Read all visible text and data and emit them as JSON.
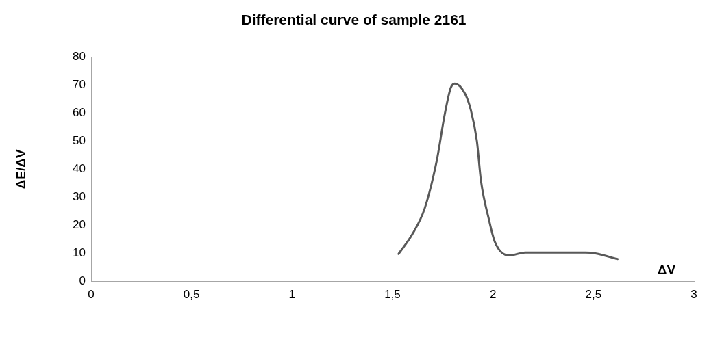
{
  "chart_data": {
    "type": "line",
    "title": "Differential curve of sample 2161",
    "xlabel": "ΔV",
    "ylabel": "ΔE/ΔV",
    "x": [
      1.53,
      1.6,
      1.66,
      1.72,
      1.76,
      1.79,
      1.81,
      1.86,
      1.89,
      1.92,
      1.94,
      1.98,
      2.01,
      2.08,
      2.16,
      2.46,
      2.51,
      2.62
    ],
    "series": [
      {
        "color": "#595959",
        "values": [
          9.8,
          17,
          26,
          43,
          59.6,
          69,
          70.5,
          67,
          61,
          50,
          36,
          22,
          14,
          9.3,
          10.3,
          10.3,
          10,
          8
        ]
      }
    ],
    "xlim": [
      0,
      3
    ],
    "xticks": [
      0,
      {
        "value": 0.5,
        "label": "0,5"
      },
      1,
      {
        "value": 1.5,
        "label": "1,5"
      },
      2,
      {
        "value": 2.5,
        "label": "2,5"
      },
      3
    ],
    "ylim": [
      0,
      80
    ],
    "yticks": [
      0,
      10,
      20,
      30,
      40,
      50,
      60,
      70,
      80
    ],
    "grid": false,
    "legend": false,
    "marker": "none",
    "line_style": "solid"
  }
}
